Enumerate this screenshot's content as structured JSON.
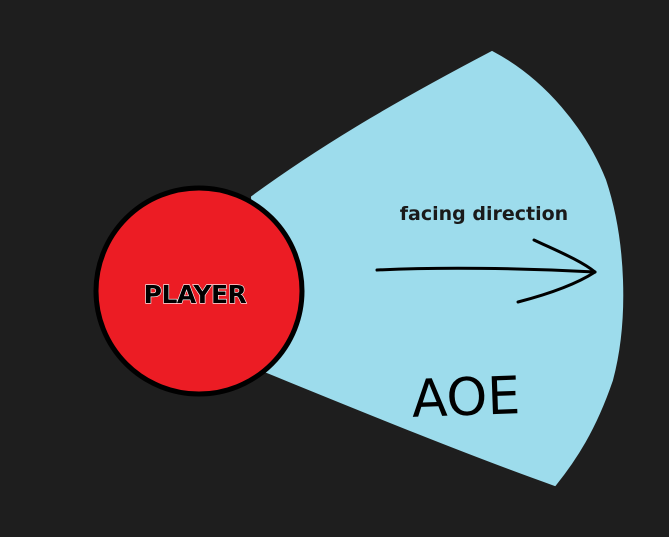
{
  "colors": {
    "background": "#1e1e1e",
    "aoe_fill": "#9ddcec",
    "player_fill": "#ec1c24",
    "outline": "#000000",
    "player_text_fill": "#000000",
    "player_text_outline": "#ffffff"
  },
  "player": {
    "label": "PLAYER"
  },
  "direction": {
    "label": "facing direction"
  },
  "aoe": {
    "label": "AOE"
  }
}
